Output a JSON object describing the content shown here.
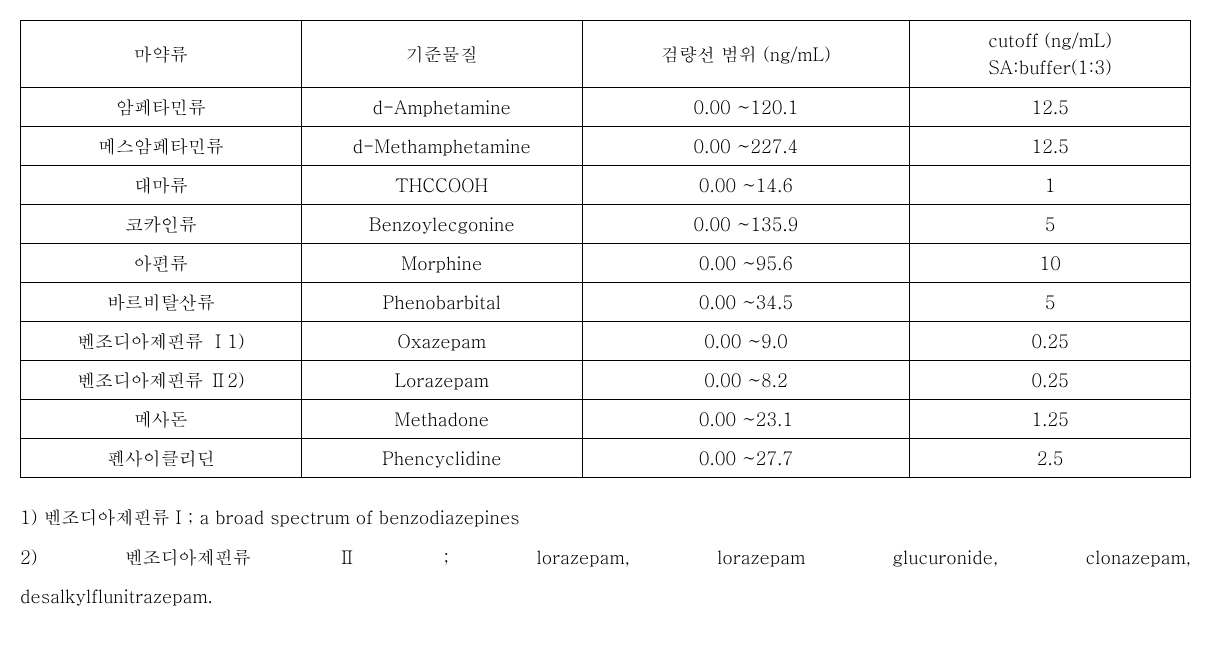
{
  "table": {
    "columns": {
      "c0": "마약류",
      "c1": "기준물질",
      "c2": "검량선 범위 (ng/mL)",
      "c3_line1": "cutoff (ng/mL)",
      "c3_line2": "SA:buffer(1:3)"
    },
    "rows": [
      {
        "c0": "암페타민류",
        "c1": "d-Amphetamine",
        "c2": "0.00 ~120.1",
        "c3": "12.5"
      },
      {
        "c0": "메스암페타민류",
        "c1": "d-Methamphetamine",
        "c2": "0.00 ~227.4",
        "c3": "12.5"
      },
      {
        "c0": "대마류",
        "c1": "THCCOOH",
        "c2": "0.00 ~14.6",
        "c3": "1"
      },
      {
        "c0": "코카인류",
        "c1": "Benzoylecgonine",
        "c2": "0.00 ~135.9",
        "c3": "5"
      },
      {
        "c0": "아편류",
        "c1": "Morphine",
        "c2": "0.00 ~95.6",
        "c3": "10"
      },
      {
        "c0": "바르비탈산류",
        "c1": "Phenobarbital",
        "c2": "0.00 ~34.5",
        "c3": "5"
      },
      {
        "c0": "벤조디아제핀류 Ⅰ1)",
        "c1": "Oxazepam",
        "c2": "0.00 ~9.0",
        "c3": "0.25"
      },
      {
        "c0": "벤조디아제핀류 Ⅱ2)",
        "c1": "Lorazepam",
        "c2": "0.00 ~8.2",
        "c3": "0.25"
      },
      {
        "c0": "메사돈",
        "c1": "Methadone",
        "c2": "0.00 ~23.1",
        "c3": "1.25"
      },
      {
        "c0": "펜사이클리딘",
        "c1": "Phencyclidine",
        "c2": "0.00 ~27.7",
        "c3": "2.5"
      }
    ]
  },
  "footnotes": {
    "f1": "1) 벤조디아제핀류Ⅰ; a broad spectrum of benzodiazepines",
    "f2_words": [
      "2)",
      "벤조디아제핀류",
      "Ⅱ",
      ";",
      "lorazepam,",
      "lorazepam",
      "glucuronide,",
      "clonazepam,"
    ],
    "f2_line2": "desalkylflunitrazepam."
  }
}
